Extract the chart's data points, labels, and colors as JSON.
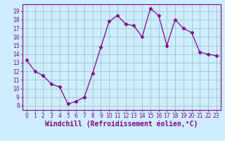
{
  "x": [
    0,
    1,
    2,
    3,
    4,
    5,
    6,
    7,
    8,
    9,
    10,
    11,
    12,
    13,
    14,
    15,
    16,
    17,
    18,
    19,
    20,
    21,
    22,
    23
  ],
  "y": [
    13.3,
    12.0,
    11.5,
    10.5,
    10.2,
    8.2,
    8.5,
    9.0,
    11.8,
    14.8,
    17.8,
    18.5,
    17.5,
    17.3,
    16.0,
    19.3,
    18.5,
    15.0,
    18.0,
    17.0,
    16.5,
    14.2,
    14.0,
    13.8
  ],
  "line_color": "#880088",
  "marker": "D",
  "marker_size": 2.5,
  "bg_color": "#cceeff",
  "grid_color": "#99bbbb",
  "ylabel_ticks": [
    8,
    9,
    10,
    11,
    12,
    13,
    14,
    15,
    16,
    17,
    18,
    19
  ],
  "xlabel_ticks": [
    0,
    1,
    2,
    3,
    4,
    5,
    6,
    7,
    8,
    9,
    10,
    11,
    12,
    13,
    14,
    15,
    16,
    17,
    18,
    19,
    20,
    21,
    22,
    23
  ],
  "xlabel": "Windchill (Refroidissement éolien,°C)",
  "ylim": [
    7.5,
    19.8
  ],
  "xlim": [
    -0.5,
    23.5
  ],
  "tick_fontsize": 5.5,
  "label_fontsize": 7.0
}
